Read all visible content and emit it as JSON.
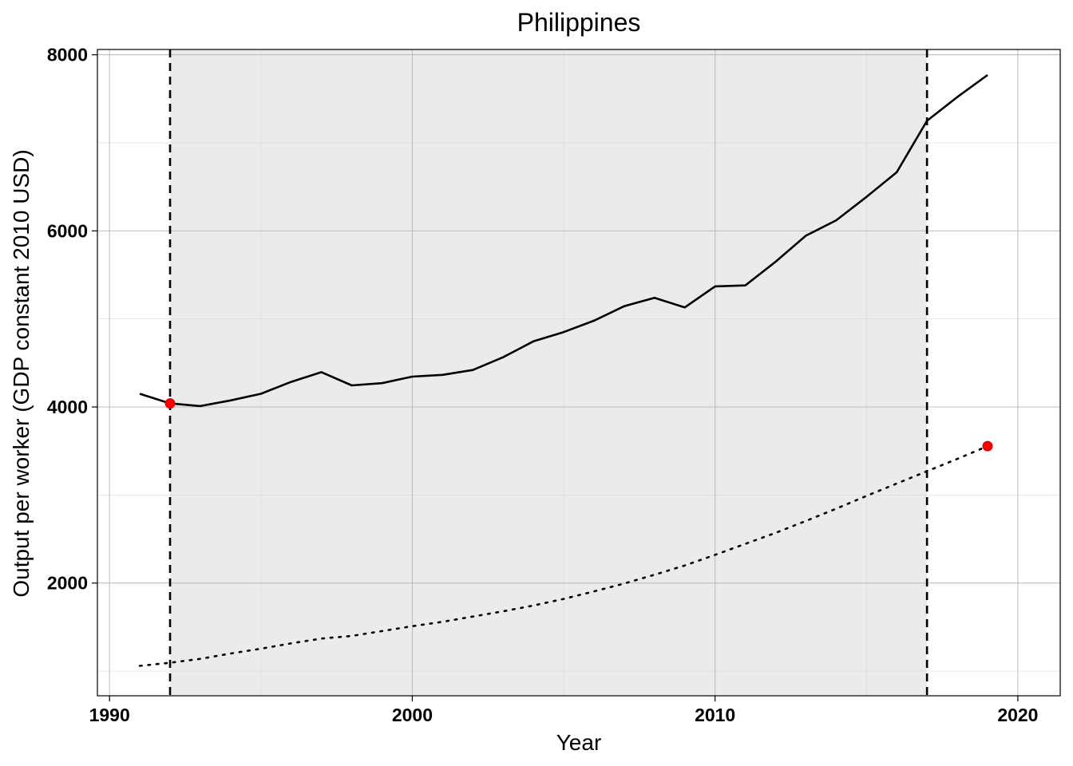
{
  "chart_data": {
    "type": "line",
    "title": "Philippines",
    "xlabel": "Year",
    "ylabel": "Output per worker (GDP constant 2010 USD)",
    "xlim": [
      1989.6,
      2021.4
    ],
    "ylim": [
      720,
      8060
    ],
    "x_ticks": [
      1990,
      2000,
      2010,
      2020
    ],
    "y_ticks": [
      2000,
      4000,
      6000,
      8000
    ],
    "grid": true,
    "shaded_region": [
      1992,
      2017
    ],
    "vlines": [
      1992,
      2017
    ],
    "colors": {
      "line": "#000000",
      "marker": "#ff0000",
      "shade": "#ebebeb"
    },
    "series": [
      {
        "style": "solid",
        "x": [
          1991,
          1992,
          1993,
          1994,
          1995,
          1996,
          1997,
          1998,
          1999,
          2000,
          2001,
          2002,
          2003,
          2004,
          2005,
          2006,
          2007,
          2008,
          2009,
          2010,
          2011,
          2012,
          2013,
          2014,
          2015,
          2016,
          2017,
          2018,
          2019
        ],
        "y": [
          4150,
          4040,
          4010,
          4075,
          4150,
          4285,
          4395,
          4245,
          4270,
          4345,
          4365,
          4420,
          4565,
          4745,
          4850,
          4980,
          5145,
          5240,
          5130,
          5370,
          5380,
          5650,
          5945,
          6120,
          6385,
          6665,
          7250,
          7520,
          7770
        ]
      },
      {
        "style": "dotted",
        "x": [
          1991,
          1992,
          1993,
          1994,
          1995,
          1996,
          1997,
          1998,
          1999,
          2000,
          2001,
          2002,
          2003,
          2004,
          2005,
          2006,
          2007,
          2008,
          2009,
          2010,
          2011,
          2012,
          2013,
          2014,
          2015,
          2016,
          2017,
          2018,
          2019
        ],
        "y": [
          1060,
          1095,
          1140,
          1200,
          1255,
          1315,
          1370,
          1400,
          1455,
          1510,
          1560,
          1620,
          1680,
          1745,
          1820,
          1905,
          1995,
          2095,
          2200,
          2320,
          2445,
          2570,
          2705,
          2845,
          2990,
          3130,
          3270,
          3410,
          3555
        ]
      }
    ],
    "markers": [
      {
        "x": 1992,
        "y": 4040
      },
      {
        "x": 2019,
        "y": 3555
      }
    ]
  }
}
